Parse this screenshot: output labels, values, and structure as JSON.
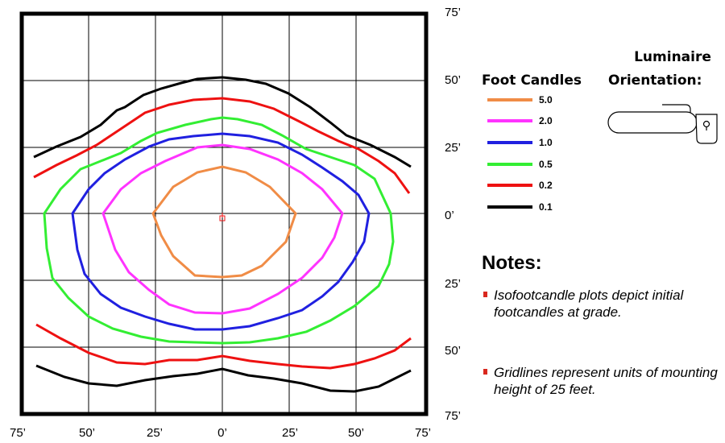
{
  "y_ticks": [
    "75’",
    "50’",
    "25’",
    "0’",
    "25’",
    "50’",
    "75’"
  ],
  "x_ticks": [
    "75’",
    "50’",
    "25’",
    "0’",
    "25’",
    "50’",
    "75’"
  ],
  "legend": {
    "title": "Foot Candles",
    "items": [
      {
        "label": "5.0",
        "color": "#f08c46"
      },
      {
        "label": "2.0",
        "color": "#ff33ff"
      },
      {
        "label": "1.0",
        "color": "#2020e0"
      },
      {
        "label": "0.5",
        "color": "#33ee33"
      },
      {
        "label": "0.2",
        "color": "#ee1111"
      },
      {
        "label": "0.1",
        "color": "#000000"
      }
    ]
  },
  "orientation": {
    "line1": "Luminaire",
    "line2": "Orientation:"
  },
  "notes": {
    "title": "Notes:",
    "items": [
      "Isofootcandle plots depict initial footcandles at grade.",
      "Gridlines represent units of mounting height of 25 feet."
    ]
  }
}
